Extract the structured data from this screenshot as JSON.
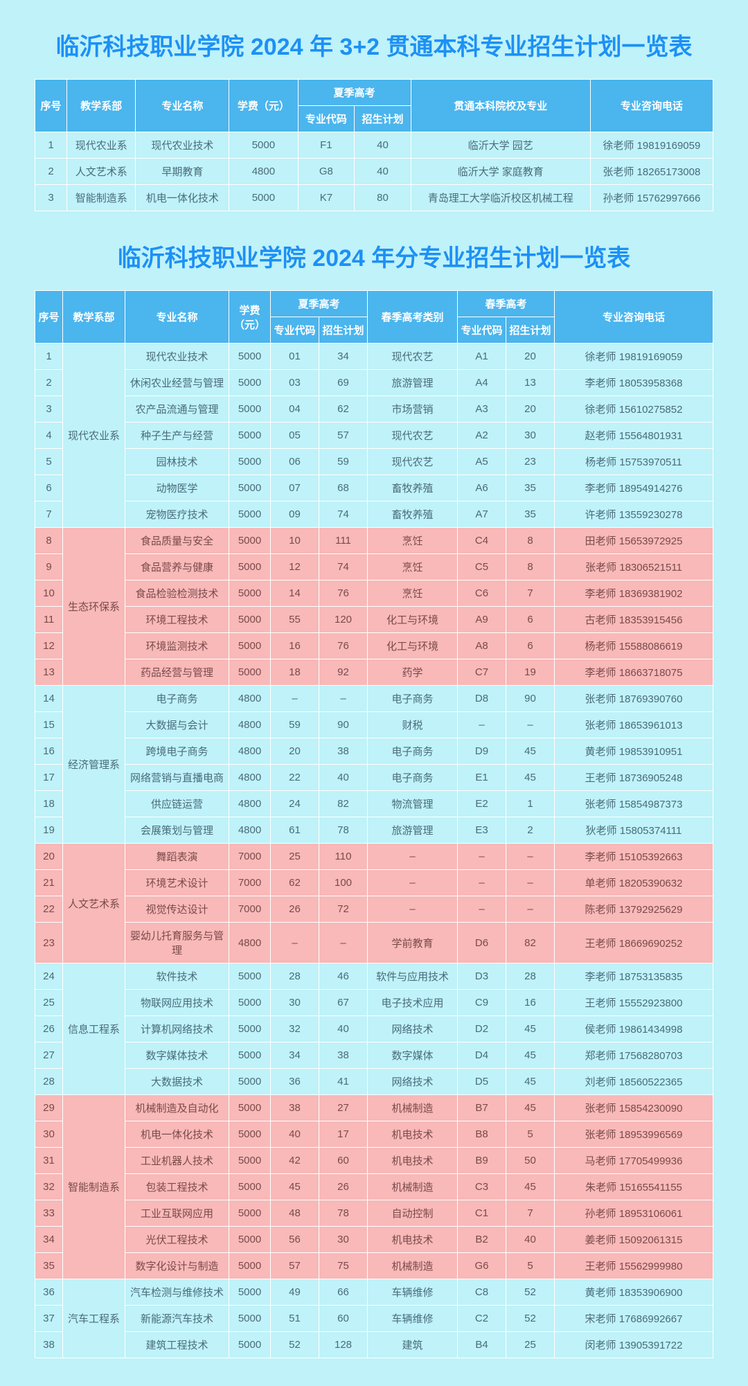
{
  "colors": {
    "background": "#bff2f9",
    "header_bg": "#4bb5ed",
    "header_text": "#ffffff",
    "title_color": "#1d90f5",
    "cyan_bg": "#bff2f9",
    "cyan_text": "#4a6b7a",
    "pink_bg": "#f8b9b8",
    "pink_text": "#7a4a4a",
    "border": "#ffffff"
  },
  "table1": {
    "title": "临沂科技职业学院 2024 年 3+2 贯通本科专业招生计划一览表",
    "headers": {
      "seq": "序号",
      "dept": "教学系部",
      "major": "专业名称",
      "fee": "学费（元）",
      "summer": "夏季高考",
      "code": "专业代码",
      "plan": "招生计划",
      "through": "贯通本科院校及专业",
      "phone": "专业咨询电话"
    },
    "rows": [
      {
        "seq": "1",
        "dept": "现代农业系",
        "major": "现代农业技术",
        "fee": "5000",
        "code": "F1",
        "plan": "40",
        "through": "临沂大学 园艺",
        "phone": "徐老师 19819169059"
      },
      {
        "seq": "2",
        "dept": "人文艺术系",
        "major": "早期教育",
        "fee": "4800",
        "code": "G8",
        "plan": "40",
        "through": "临沂大学 家庭教育",
        "phone": "张老师 18265173008"
      },
      {
        "seq": "3",
        "dept": "智能制造系",
        "major": "机电一体化技术",
        "fee": "5000",
        "code": "K7",
        "plan": "80",
        "through": "青岛理工大学临沂校区机械工程",
        "phone": "孙老师 15762997666"
      }
    ]
  },
  "table2": {
    "title": "临沂科技职业学院 2024 年分专业招生计划一览表",
    "headers": {
      "seq": "序号",
      "dept": "教学系部",
      "major": "专业名称",
      "fee": "学费（元）",
      "summer": "夏季高考",
      "summer_code": "专业代码",
      "summer_plan": "招生计划",
      "spring_cat": "春季高考类别",
      "spring": "春季高考",
      "spring_code": "专业代码",
      "spring_plan": "招生计划",
      "phone": "专业咨询电话"
    },
    "groups": [
      {
        "dept": "现代农业系",
        "color": "cyan",
        "rows": [
          {
            "seq": "1",
            "major": "现代农业技术",
            "fee": "5000",
            "sc": "01",
            "sp": "34",
            "cat": "现代农艺",
            "spc": "A1",
            "spp": "20",
            "phone": "徐老师 19819169059"
          },
          {
            "seq": "2",
            "major": "休闲农业经营与管理",
            "fee": "5000",
            "sc": "03",
            "sp": "69",
            "cat": "旅游管理",
            "spc": "A4",
            "spp": "13",
            "phone": "李老师 18053958368"
          },
          {
            "seq": "3",
            "major": "农产品流通与管理",
            "fee": "5000",
            "sc": "04",
            "sp": "62",
            "cat": "市场营销",
            "spc": "A3",
            "spp": "20",
            "phone": "徐老师 15610275852"
          },
          {
            "seq": "4",
            "major": "种子生产与经营",
            "fee": "5000",
            "sc": "05",
            "sp": "57",
            "cat": "现代农艺",
            "spc": "A2",
            "spp": "30",
            "phone": "赵老师 15564801931"
          },
          {
            "seq": "5",
            "major": "园林技术",
            "fee": "5000",
            "sc": "06",
            "sp": "59",
            "cat": "现代农艺",
            "spc": "A5",
            "spp": "23",
            "phone": "杨老师 15753970511"
          },
          {
            "seq": "6",
            "major": "动物医学",
            "fee": "5000",
            "sc": "07",
            "sp": "68",
            "cat": "畜牧养殖",
            "spc": "A6",
            "spp": "35",
            "phone": "李老师 18954914276"
          },
          {
            "seq": "7",
            "major": "宠物医疗技术",
            "fee": "5000",
            "sc": "09",
            "sp": "74",
            "cat": "畜牧养殖",
            "spc": "A7",
            "spp": "35",
            "phone": "许老师 13559230278"
          }
        ]
      },
      {
        "dept": "生态环保系",
        "color": "pink",
        "rows": [
          {
            "seq": "8",
            "major": "食品质量与安全",
            "fee": "5000",
            "sc": "10",
            "sp": "111",
            "cat": "烹饪",
            "spc": "C4",
            "spp": "8",
            "phone": "田老师 15653972925"
          },
          {
            "seq": "9",
            "major": "食品营养与健康",
            "fee": "5000",
            "sc": "12",
            "sp": "74",
            "cat": "烹饪",
            "spc": "C5",
            "spp": "8",
            "phone": "张老师 18306521511"
          },
          {
            "seq": "10",
            "major": "食品检验检测技术",
            "fee": "5000",
            "sc": "14",
            "sp": "76",
            "cat": "烹饪",
            "spc": "C6",
            "spp": "7",
            "phone": "李老师 18369381902"
          },
          {
            "seq": "11",
            "major": "环境工程技术",
            "fee": "5000",
            "sc": "55",
            "sp": "120",
            "cat": "化工与环境",
            "spc": "A9",
            "spp": "6",
            "phone": "古老师 18353915456"
          },
          {
            "seq": "12",
            "major": "环境监测技术",
            "fee": "5000",
            "sc": "16",
            "sp": "76",
            "cat": "化工与环境",
            "spc": "A8",
            "spp": "6",
            "phone": "杨老师 15588086619"
          },
          {
            "seq": "13",
            "major": "药品经营与管理",
            "fee": "5000",
            "sc": "18",
            "sp": "92",
            "cat": "药学",
            "spc": "C7",
            "spp": "19",
            "phone": "李老师 18663718075"
          }
        ]
      },
      {
        "dept": "经济管理系",
        "color": "cyan",
        "rows": [
          {
            "seq": "14",
            "major": "电子商务",
            "fee": "4800",
            "sc": "–",
            "sp": "–",
            "cat": "电子商务",
            "spc": "D8",
            "spp": "90",
            "phone": "张老师 18769390760"
          },
          {
            "seq": "15",
            "major": "大数据与会计",
            "fee": "4800",
            "sc": "59",
            "sp": "90",
            "cat": "财税",
            "spc": "–",
            "spp": "–",
            "phone": "张老师 18653961013"
          },
          {
            "seq": "16",
            "major": "跨境电子商务",
            "fee": "4800",
            "sc": "20",
            "sp": "38",
            "cat": "电子商务",
            "spc": "D9",
            "spp": "45",
            "phone": "黄老师 19853910951"
          },
          {
            "seq": "17",
            "major": "网络营销与直播电商",
            "fee": "4800",
            "sc": "22",
            "sp": "40",
            "cat": "电子商务",
            "spc": "E1",
            "spp": "45",
            "phone": "王老师 18736905248"
          },
          {
            "seq": "18",
            "major": "供应链运营",
            "fee": "4800",
            "sc": "24",
            "sp": "82",
            "cat": "物流管理",
            "spc": "E2",
            "spp": "1",
            "phone": "张老师 15854987373"
          },
          {
            "seq": "19",
            "major": "会展策划与管理",
            "fee": "4800",
            "sc": "61",
            "sp": "78",
            "cat": "旅游管理",
            "spc": "E3",
            "spp": "2",
            "phone": "狄老师 15805374111"
          }
        ]
      },
      {
        "dept": "人文艺术系",
        "color": "pink",
        "rows": [
          {
            "seq": "20",
            "major": "舞蹈表演",
            "fee": "7000",
            "sc": "25",
            "sp": "110",
            "cat": "–",
            "spc": "–",
            "spp": "–",
            "phone": "李老师 15105392663"
          },
          {
            "seq": "21",
            "major": "环境艺术设计",
            "fee": "7000",
            "sc": "62",
            "sp": "100",
            "cat": "–",
            "spc": "–",
            "spp": "–",
            "phone": "单老师 18205390632"
          },
          {
            "seq": "22",
            "major": "视觉传达设计",
            "fee": "7000",
            "sc": "26",
            "sp": "72",
            "cat": "–",
            "spc": "–",
            "spp": "–",
            "phone": "陈老师 13792925629"
          },
          {
            "seq": "23",
            "major": "婴幼儿托育服务与管理",
            "fee": "4800",
            "sc": "–",
            "sp": "–",
            "cat": "学前教育",
            "spc": "D6",
            "spp": "82",
            "phone": "王老师 18669690252"
          }
        ]
      },
      {
        "dept": "信息工程系",
        "color": "cyan",
        "rows": [
          {
            "seq": "24",
            "major": "软件技术",
            "fee": "5000",
            "sc": "28",
            "sp": "46",
            "cat": "软件与应用技术",
            "spc": "D3",
            "spp": "28",
            "phone": "李老师 18753135835"
          },
          {
            "seq": "25",
            "major": "物联网应用技术",
            "fee": "5000",
            "sc": "30",
            "sp": "67",
            "cat": "电子技术应用",
            "spc": "C9",
            "spp": "16",
            "phone": "王老师 15552923800"
          },
          {
            "seq": "26",
            "major": "计算机网络技术",
            "fee": "5000",
            "sc": "32",
            "sp": "40",
            "cat": "网络技术",
            "spc": "D2",
            "spp": "45",
            "phone": "侯老师 19861434998"
          },
          {
            "seq": "27",
            "major": "数字媒体技术",
            "fee": "5000",
            "sc": "34",
            "sp": "38",
            "cat": "数字媒体",
            "spc": "D4",
            "spp": "45",
            "phone": "郑老师 17568280703"
          },
          {
            "seq": "28",
            "major": "大数据技术",
            "fee": "5000",
            "sc": "36",
            "sp": "41",
            "cat": "网络技术",
            "spc": "D5",
            "spp": "45",
            "phone": "刘老师 18560522365"
          }
        ]
      },
      {
        "dept": "智能制造系",
        "color": "pink",
        "rows": [
          {
            "seq": "29",
            "major": "机械制造及自动化",
            "fee": "5000",
            "sc": "38",
            "sp": "27",
            "cat": "机械制造",
            "spc": "B7",
            "spp": "45",
            "phone": "张老师 15854230090"
          },
          {
            "seq": "30",
            "major": "机电一体化技术",
            "fee": "5000",
            "sc": "40",
            "sp": "17",
            "cat": "机电技术",
            "spc": "B8",
            "spp": "5",
            "phone": "张老师 18953996569"
          },
          {
            "seq": "31",
            "major": "工业机器人技术",
            "fee": "5000",
            "sc": "42",
            "sp": "60",
            "cat": "机电技术",
            "spc": "B9",
            "spp": "50",
            "phone": "马老师 17705499936"
          },
          {
            "seq": "32",
            "major": "包装工程技术",
            "fee": "5000",
            "sc": "45",
            "sp": "26",
            "cat": "机械制造",
            "spc": "C3",
            "spp": "45",
            "phone": "朱老师 15165541155"
          },
          {
            "seq": "33",
            "major": "工业互联网应用",
            "fee": "5000",
            "sc": "48",
            "sp": "78",
            "cat": "自动控制",
            "spc": "C1",
            "spp": "7",
            "phone": "孙老师 18953106061"
          },
          {
            "seq": "34",
            "major": "光伏工程技术",
            "fee": "5000",
            "sc": "56",
            "sp": "30",
            "cat": "机电技术",
            "spc": "B2",
            "spp": "40",
            "phone": "姜老师 15092061315"
          },
          {
            "seq": "35",
            "major": "数字化设计与制造",
            "fee": "5000",
            "sc": "57",
            "sp": "75",
            "cat": "机械制造",
            "spc": "G6",
            "spp": "5",
            "phone": "王老师 15562999980"
          }
        ]
      },
      {
        "dept": "汽车工程系",
        "color": "cyan",
        "rows": [
          {
            "seq": "36",
            "major": "汽车检测与维修技术",
            "fee": "5000",
            "sc": "49",
            "sp": "66",
            "cat": "车辆维修",
            "spc": "C8",
            "spp": "52",
            "phone": "黄老师 18353906900"
          },
          {
            "seq": "37",
            "major": "新能源汽车技术",
            "fee": "5000",
            "sc": "51",
            "sp": "60",
            "cat": "车辆维修",
            "spc": "C2",
            "spp": "52",
            "phone": "宋老师 17686992667"
          },
          {
            "seq": "38",
            "major": "建筑工程技术",
            "fee": "5000",
            "sc": "52",
            "sp": "128",
            "cat": "建筑",
            "spc": "B4",
            "spp": "25",
            "phone": "闵老师 13905391722"
          }
        ]
      }
    ]
  }
}
